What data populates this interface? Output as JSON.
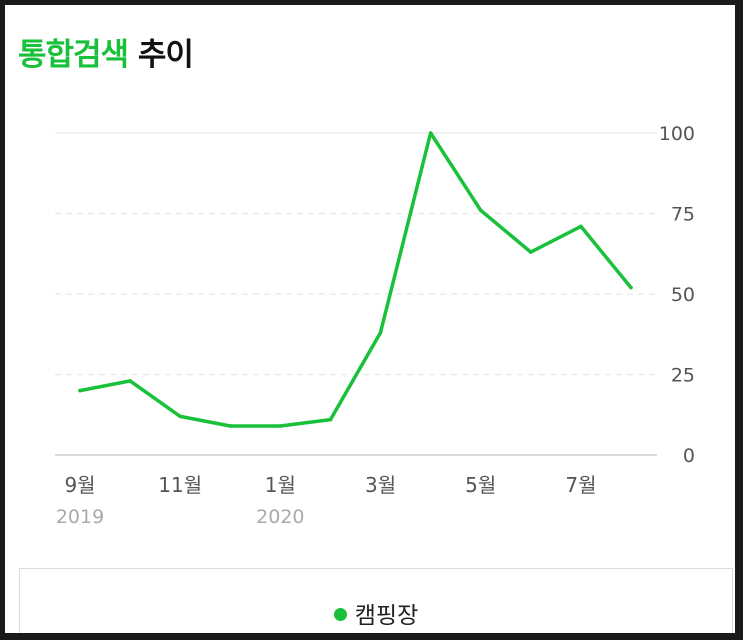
{
  "header": {
    "title_highlight": "통합검색",
    "title_rest": "추이"
  },
  "colors": {
    "series": "#19c13a",
    "title_highlight": "#19c13a"
  },
  "chart_data": {
    "type": "line",
    "title": "통합검색 추이",
    "x": [
      "2019-09",
      "2019-10",
      "2019-11",
      "2019-12",
      "2020-01",
      "2020-02",
      "2020-03",
      "2020-04",
      "2020-05",
      "2020-06",
      "2020-07",
      "2020-08"
    ],
    "series": [
      {
        "name": "캠핑장",
        "values": [
          20,
          23,
          12,
          9,
          9,
          11,
          38,
          100,
          76,
          63,
          71,
          52
        ]
      }
    ],
    "x_ticks": [
      {
        "label": "9월",
        "sub": "2019",
        "index": 0
      },
      {
        "label": "11월",
        "sub": "",
        "index": 2
      },
      {
        "label": "1월",
        "sub": "2020",
        "index": 4
      },
      {
        "label": "3월",
        "sub": "",
        "index": 6
      },
      {
        "label": "5월",
        "sub": "",
        "index": 8
      },
      {
        "label": "7월",
        "sub": "",
        "index": 10
      }
    ],
    "y_ticks": [
      0,
      25,
      50,
      75,
      100
    ],
    "ylim": [
      0,
      100
    ],
    "y_axis_side": "right",
    "grid": true,
    "legend_position": "bottom"
  }
}
